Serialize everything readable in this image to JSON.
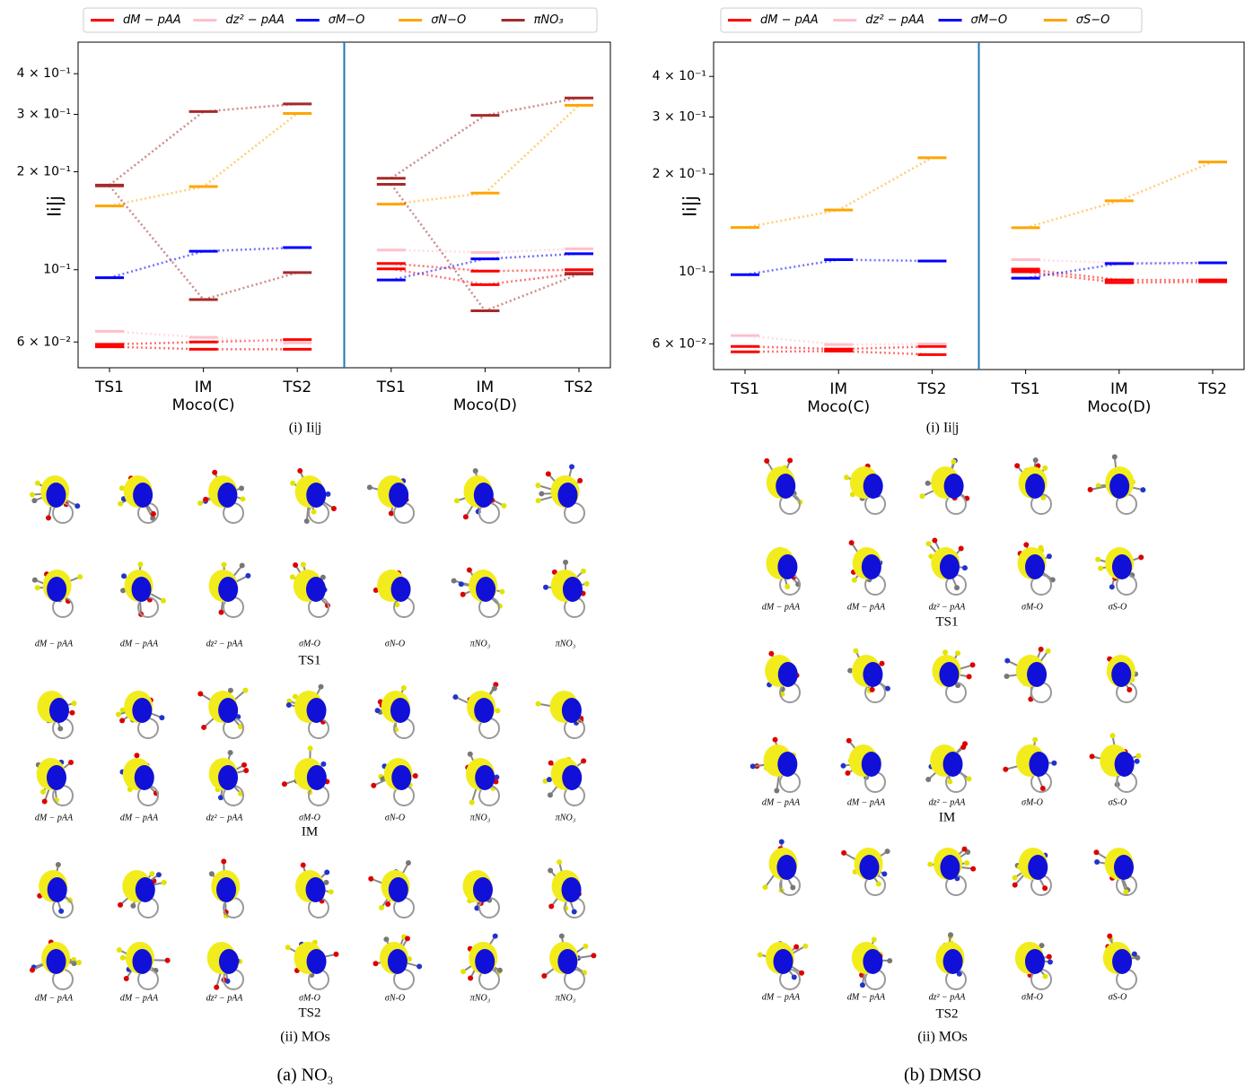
{
  "chart_data": [
    {
      "type": "level",
      "caption": "(i) Ii|j",
      "ylabel": "Ii|j",
      "log_scale": true,
      "ylim": [
        0.05,
        0.5
      ],
      "yticks": [
        {
          "value": 0.4,
          "label": "4 × 10⁻¹"
        },
        {
          "value": 0.3,
          "label": "3 × 10⁻¹"
        },
        {
          "value": 0.2,
          "label": "2 × 10⁻¹"
        },
        {
          "value": 0.1,
          "label": "10⁻¹"
        },
        {
          "value": 0.06,
          "label": "6 × 10⁻²"
        }
      ],
      "categories": [
        "TS1",
        "IM",
        "TS2",
        "TS1",
        "IM",
        "TS2"
      ],
      "groups": [
        "Moco(C)",
        "Moco(D)"
      ],
      "separator_color": "#1f77b4",
      "series": [
        {
          "name": "dM − pAA",
          "color": "#ff0000",
          "values": [
            [
              0.059,
              0.06,
              0.061,
              0.1045,
              0.099,
              0.1
            ],
            [
              0.058,
              0.057,
              0.057,
              0.1006,
              0.09,
              0.0975
            ]
          ]
        },
        {
          "name": "dz² − pAA",
          "color": "#ffc0cb",
          "values": [
            [
              0.0647,
              0.062,
              0.0596,
              0.115,
              0.113,
              0.116
            ]
          ]
        },
        {
          "name": "σM−O",
          "color": "#0000ff",
          "values": [
            [
              0.0945,
              0.114,
              0.117,
              0.093,
              0.108,
              0.112
            ]
          ]
        },
        {
          "name": "σN−O",
          "color": "#ffa500",
          "values": [
            [
              0.157,
              0.18,
              0.302,
              0.159,
              0.172,
              0.32
            ]
          ]
        },
        {
          "name": "πNO₃",
          "color": "#a52a2a",
          "values": [
            [
              0.182,
              0.306,
              0.323,
              0.191,
              0.298,
              0.337
            ],
            [
              0.181,
              0.081,
              0.098,
              0.183,
              0.0748,
              0.097
            ]
          ]
        }
      ]
    },
    {
      "type": "level",
      "caption": "(i) Ii|j",
      "ylabel": "Ii|j",
      "log_scale": true,
      "ylim": [
        0.05,
        0.51
      ],
      "yticks": [
        {
          "value": 0.4,
          "label": "4 × 10⁻¹"
        },
        {
          "value": 0.3,
          "label": "3 × 10⁻¹"
        },
        {
          "value": 0.2,
          "label": "2 × 10⁻¹"
        },
        {
          "value": 0.1,
          "label": "10⁻¹"
        },
        {
          "value": 0.06,
          "label": "6 × 10⁻²"
        }
      ],
      "categories": [
        "TS1",
        "IM",
        "TS2",
        "TS1",
        "IM",
        "TS2"
      ],
      "groups": [
        "Moco(C)",
        "Moco(D)"
      ],
      "separator_color": "#1f77b4",
      "series": [
        {
          "name": "dM − pAA",
          "color": "#ff0000",
          "values": [
            [
              0.0589,
              0.0578,
              0.0589,
              0.102,
              0.0944,
              0.0944
            ],
            [
              0.0567,
              0.057,
              0.0556,
              0.1,
              0.0926,
              0.0932
            ]
          ]
        },
        {
          "name": "dz² − pAA",
          "color": "#ffc0cb",
          "values": [
            [
              0.0636,
              0.0597,
              0.06,
              0.109,
              0.1066,
              0.1066
            ]
          ]
        },
        {
          "name": "σM−O",
          "color": "#0000ff",
          "values": [
            [
              0.098,
              0.109,
              0.108,
              0.0956,
              0.106,
              0.1066
            ]
          ]
        },
        {
          "name": "σS−O",
          "color": "#ffa500",
          "values": [
            [
              0.137,
              0.155,
              0.2247,
              0.1367,
              0.1655,
              0.218
            ]
          ]
        }
      ]
    }
  ],
  "panels": [
    {
      "caption": "(a) NO₃",
      "mo_caption": "(ii) MOs",
      "mo_groups": [
        {
          "name": "TS1",
          "labels": [
            "dM − pAA",
            "dM − pAA",
            "dz² − pAA",
            "σM-O",
            "σN-O",
            "πNO₃",
            "πNO₃"
          ]
        },
        {
          "name": "IM",
          "labels": [
            "dM − pAA",
            "dM − pAA",
            "dz² − pAA",
            "σM-O",
            "σN-O",
            "πNO₃",
            "πNO₃"
          ]
        },
        {
          "name": "TS2",
          "labels": [
            "dM − pAA",
            "dM − pAA",
            "dz² − pAA",
            "σM-O",
            "σN-O",
            "πNO₃",
            "πNO₃"
          ]
        }
      ]
    },
    {
      "caption": "(b) DMSO",
      "mo_caption": "(ii) MOs",
      "mo_groups": [
        {
          "name": "TS1",
          "labels": [
            "dM − pAA",
            "dM − pAA",
            "dz² − pAA",
            "σM-O",
            "σS-O"
          ]
        },
        {
          "name": "IM",
          "labels": [
            "dM − pAA",
            "dM − pAA",
            "dz² − pAA",
            "σM-O",
            "σS-O"
          ]
        },
        {
          "name": "TS2",
          "labels": [
            "dM − pAA",
            "dM − pAA",
            "dz² − pAA",
            "σM-O",
            "σS-O"
          ]
        }
      ]
    }
  ]
}
